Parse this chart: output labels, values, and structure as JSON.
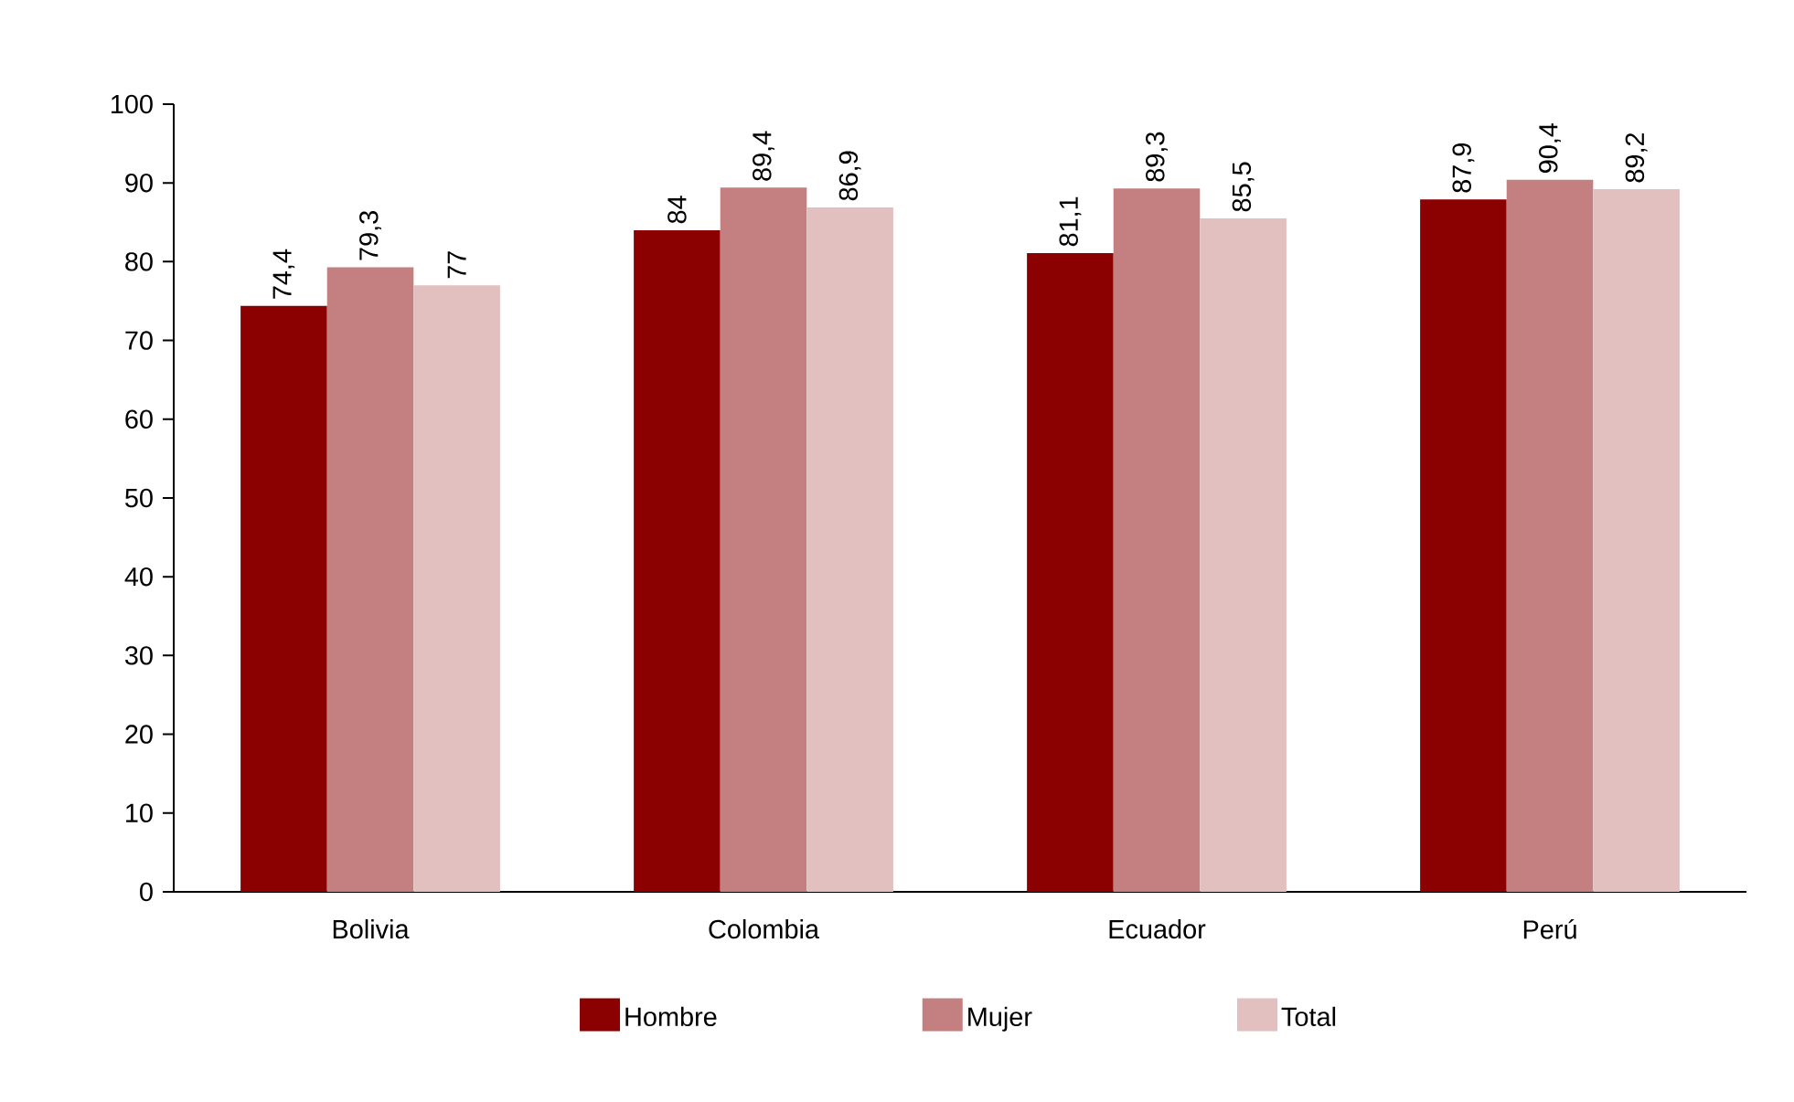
{
  "chart_data": {
    "type": "bar",
    "categories": [
      "Bolivia",
      "Colombia",
      "Ecuador",
      "Perú"
    ],
    "series": [
      {
        "name": "Hombre",
        "color": "#8b0000",
        "values": [
          74.4,
          84,
          81.1,
          87.9
        ],
        "value_labels": [
          "74,4",
          "84",
          "81,1",
          "87,9"
        ]
      },
      {
        "name": "Mujer",
        "color": "#c48080",
        "values": [
          79.3,
          89.4,
          89.3,
          90.4
        ],
        "value_labels": [
          "79,3",
          "89,4",
          "89,3",
          "90,4"
        ]
      },
      {
        "name": "Total",
        "color": "#e2c0c0",
        "values": [
          77,
          86.9,
          85.5,
          89.2
        ],
        "value_labels": [
          "77",
          "86,9",
          "85,5",
          "89,2"
        ]
      }
    ],
    "ylim": [
      0,
      100
    ],
    "yticks": [
      0,
      10,
      20,
      30,
      40,
      50,
      60,
      70,
      80,
      90,
      100
    ],
    "grid": false,
    "legend": "bottom"
  }
}
